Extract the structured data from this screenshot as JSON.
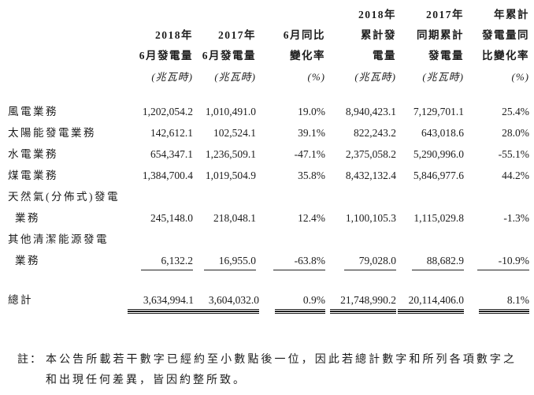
{
  "table": {
    "header": {
      "columns": [
        {
          "title": "2018年\n6月發電量",
          "unit": "(兆瓦時)"
        },
        {
          "title": "2017年\n6月發電量",
          "unit": "(兆瓦時)"
        },
        {
          "title": "6月同比\n變化率",
          "unit": "(%)"
        },
        {
          "title": "2018年\n累計發\n電量",
          "unit": "(兆瓦時)"
        },
        {
          "title": "2017年\n同期累計\n發電量",
          "unit": "(兆瓦時)"
        },
        {
          "title": "年累計\n發電量同\n比變化率",
          "unit": "(%)"
        }
      ]
    },
    "rows": [
      {
        "label": "風電業務",
        "values": [
          "1,202,054.2",
          "1,010,491.0",
          "19.0%",
          "8,940,423.1",
          "7,129,701.1",
          "25.4%"
        ]
      },
      {
        "label": "太陽能發電業務",
        "values": [
          "142,612.1",
          "102,524.1",
          "39.1%",
          "822,243.2",
          "643,018.6",
          "28.0%"
        ]
      },
      {
        "label": "水電業務",
        "values": [
          "654,347.1",
          "1,236,509.1",
          "-47.1%",
          "2,375,058.2",
          "5,290,996.0",
          "-55.1%"
        ]
      },
      {
        "label": "煤電業務",
        "values": [
          "1,384,700.4",
          "1,019,504.9",
          "35.8%",
          "8,432,132.4",
          "5,846,977.6",
          "44.2%"
        ]
      },
      {
        "label": "天然氣(分佈式)發電",
        "label2": "業務",
        "values": [
          "245,148.0",
          "218,048.1",
          "12.4%",
          "1,100,105.3",
          "1,115,029.8",
          "-1.3%"
        ]
      },
      {
        "label": "其他清潔能源發電",
        "label2": "業務",
        "values": [
          "6,132.2",
          "16,955.0",
          "-63.8%",
          "79,028.0",
          "88,682.9",
          "-10.9%"
        ]
      }
    ],
    "total": {
      "label": "總計",
      "values": [
        "3,634,994.1",
        "3,604,032.0",
        "0.9%",
        "21,748,990.2",
        "20,114,406.0",
        "8.1%"
      ]
    }
  },
  "note": {
    "marker": "註：",
    "text": "本公告所載若干數字已經約至小數點後一位，因此若總計數字和所列各項數字之和出現任何差異，皆因約整所致。"
  }
}
